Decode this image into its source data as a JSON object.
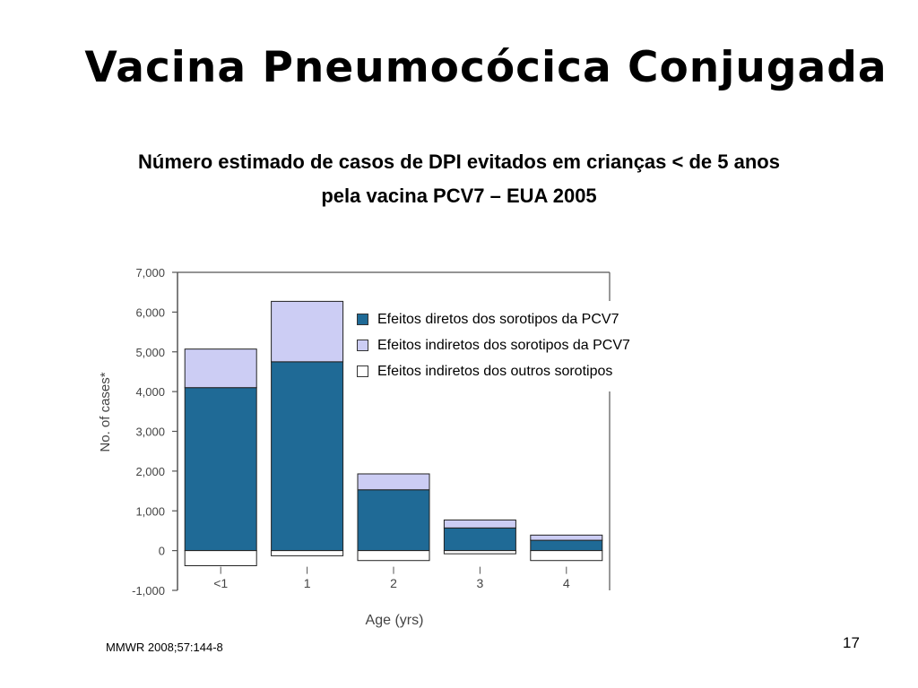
{
  "slide": {
    "title": "Vacina Pneumocócica Conjugada",
    "subtitle_line1": "Número estimado de casos de DPI evitados em crianças < de 5 anos",
    "subtitle_line2": "pela vacina PCV7 – EUA 2005",
    "source": "MMWR 2008;57:144-8",
    "page_number": "17"
  },
  "colors": {
    "direct": "#1f6a96",
    "indirect_pcv7": "#cccdf4",
    "indirect_other": "#ffffff",
    "stroke": "#222222",
    "axis": "#555555"
  },
  "chart_data": {
    "type": "bar",
    "stacked": true,
    "categories": [
      "<1",
      "1",
      "2",
      "3",
      "4"
    ],
    "series": [
      {
        "name": "Efeitos diretos dos sorotipos da  PCV7",
        "values": [
          4100,
          4750,
          1530,
          570,
          260
        ]
      },
      {
        "name": "Efeitos indiretos dos sorotipos da PCV7",
        "values": [
          970,
          1520,
          400,
          200,
          130
        ]
      },
      {
        "name": "Efeitos indiretos dos outros sorotipos",
        "values": [
          -380,
          -130,
          -250,
          -80,
          -250
        ]
      }
    ],
    "xlabel": "Age (yrs)",
    "ylabel": "No. of cases*",
    "ylim": [
      -1000,
      7000
    ],
    "yticks": [
      "-1,000",
      "0",
      "1,000",
      "2,000",
      "3,000",
      "4,000",
      "5,000",
      "6,000",
      "7,000"
    ],
    "legend_position": "top-right"
  }
}
